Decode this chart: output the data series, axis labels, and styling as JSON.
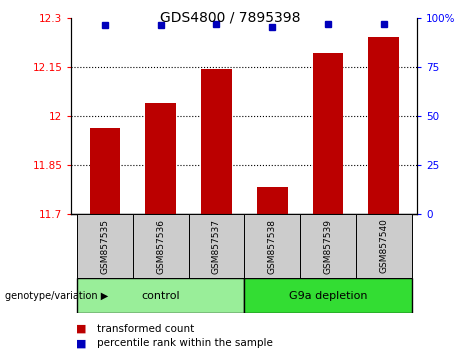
{
  "title": "GDS4800 / 7895398",
  "categories": [
    "GSM857535",
    "GSM857536",
    "GSM857537",
    "GSM857538",
    "GSM857539",
    "GSM857540"
  ],
  "bar_values": [
    11.962,
    12.04,
    12.142,
    11.782,
    12.192,
    12.242
  ],
  "percentile_values": [
    96.5,
    96.5,
    97.0,
    95.5,
    97.0,
    97.0
  ],
  "ylim_left": [
    11.7,
    12.3
  ],
  "ylim_right": [
    0,
    100
  ],
  "yticks_left": [
    11.7,
    11.85,
    12.0,
    12.15,
    12.3
  ],
  "ytick_labels_left": [
    "11.7",
    "11.85",
    "12",
    "12.15",
    "12.3"
  ],
  "yticks_right": [
    0,
    25,
    50,
    75,
    100
  ],
  "ytick_labels_right": [
    "0",
    "25",
    "50",
    "75",
    "100%"
  ],
  "hlines": [
    11.85,
    12.0,
    12.15
  ],
  "bar_color": "#bb0000",
  "dot_color": "#0000bb",
  "bar_width": 0.55,
  "group1_label": "control",
  "group2_label": "G9a depletion",
  "group1_indices": [
    0,
    1,
    2
  ],
  "group2_indices": [
    3,
    4,
    5
  ],
  "group1_color": "#99ee99",
  "group2_color": "#33dd33",
  "genotype_label": "genotype/variation",
  "legend_red_label": "transformed count",
  "legend_blue_label": "percentile rank within the sample",
  "sample_box_color": "#cccccc",
  "title_fontsize": 10,
  "tick_fontsize": 7.5,
  "label_fontsize": 7.5,
  "cat_fontsize": 6.5,
  "group_fontsize": 8,
  "legend_fontsize": 7.5
}
